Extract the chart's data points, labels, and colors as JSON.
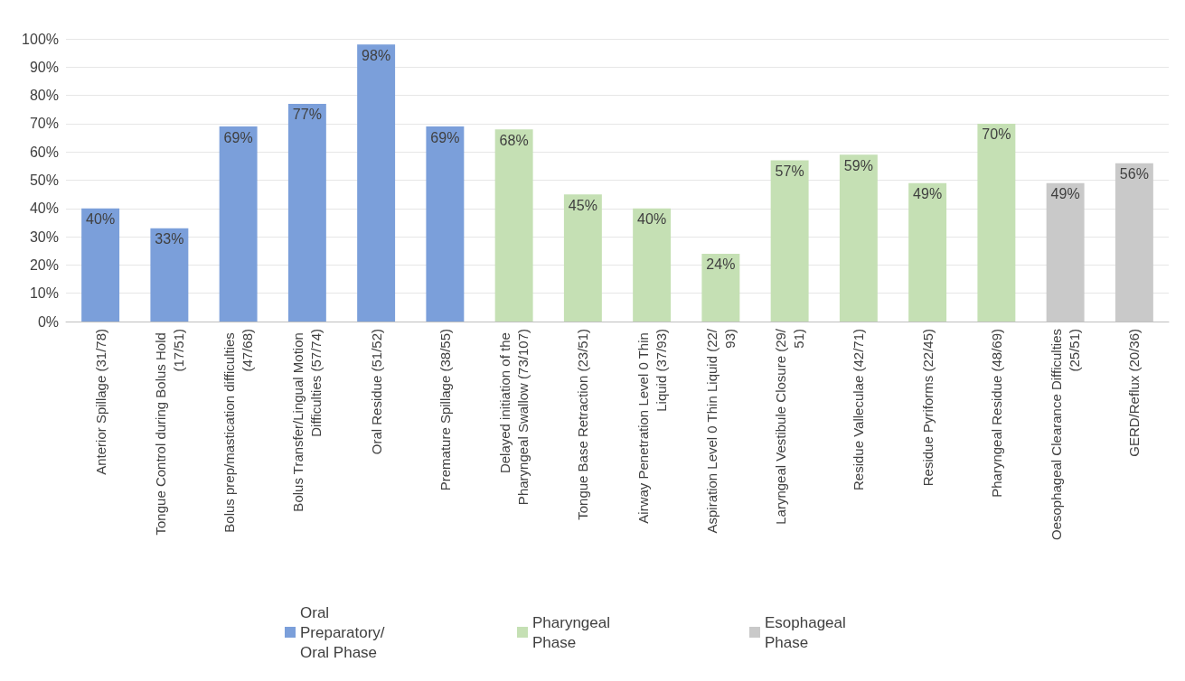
{
  "chart_data": {
    "type": "bar",
    "categories": [
      "Anterior Spillage (31/78)",
      "Tongue Control during Bolus Hold (17/51)",
      "Bolus prep/mastication difficulties (47/68)",
      "Bolus Transfer/Lingual Motion Difficulties (57/74)",
      "Oral Residue (51/52)",
      "Premature Spillage (38/55)",
      "Delayed initiation of the Pharyngeal Swallow (73/107)",
      "Tongue Base Retraction (23/51)",
      "Airway Penetration Level 0 Thin Liquid (37/93)",
      "Aspiration Level 0 Thin Liquid (22/93)",
      "Laryngeal Vestibule Closure (29/51)",
      "Residue Valleculae (42/71)",
      "Residue Pyriforms (22/45)",
      "Pharyngeal Residue (48/69)",
      "Oesophageal Clearance Difficulties (25/51)",
      "GERD/Reflux (20/36)"
    ],
    "stacked": true,
    "series": [
      {
        "name": "Oral Preparatory/ Oral Phase",
        "color": "#7b9fda",
        "values": [
          40,
          33,
          69,
          77,
          98,
          69,
          null,
          null,
          null,
          null,
          null,
          null,
          null,
          null,
          null,
          null
        ],
        "value_labels": [
          "40%",
          "33%",
          "69%",
          "77%",
          "98%",
          "69%",
          null,
          null,
          null,
          null,
          null,
          null,
          null,
          null,
          null,
          null
        ]
      },
      {
        "name": "Pharyngeal Phase",
        "color": "#c5e0b4",
        "values": [
          null,
          null,
          null,
          null,
          null,
          null,
          68,
          45,
          40,
          24,
          57,
          59,
          49,
          70,
          null,
          null
        ],
        "value_labels": [
          null,
          null,
          null,
          null,
          null,
          null,
          "68%",
          "45%",
          "40%",
          "24%",
          "57%",
          "59%",
          "49%",
          "70%",
          null,
          null
        ]
      },
      {
        "name": "Esophageal Phase",
        "color": "#c9c9c9",
        "values": [
          null,
          null,
          null,
          null,
          null,
          null,
          null,
          null,
          null,
          null,
          null,
          null,
          null,
          null,
          49,
          56
        ],
        "value_labels": [
          null,
          null,
          null,
          null,
          null,
          null,
          null,
          null,
          null,
          null,
          null,
          null,
          null,
          null,
          "49%",
          "56%"
        ]
      }
    ],
    "ylim": [
      0,
      100
    ],
    "yticks": [
      {
        "value": 0,
        "label": "0%"
      },
      {
        "value": 10,
        "label": "10%"
      },
      {
        "value": 20,
        "label": "20%"
      },
      {
        "value": 30,
        "label": "30%"
      },
      {
        "value": 40,
        "label": "40%"
      },
      {
        "value": 50,
        "label": "50%"
      },
      {
        "value": 60,
        "label": "60%"
      },
      {
        "value": 70,
        "label": "70%"
      },
      {
        "value": 80,
        "label": "80%"
      },
      {
        "value": 90,
        "label": "90%"
      },
      {
        "value": 100,
        "label": "100%"
      }
    ],
    "grid": "y",
    "legend": "bottom"
  }
}
